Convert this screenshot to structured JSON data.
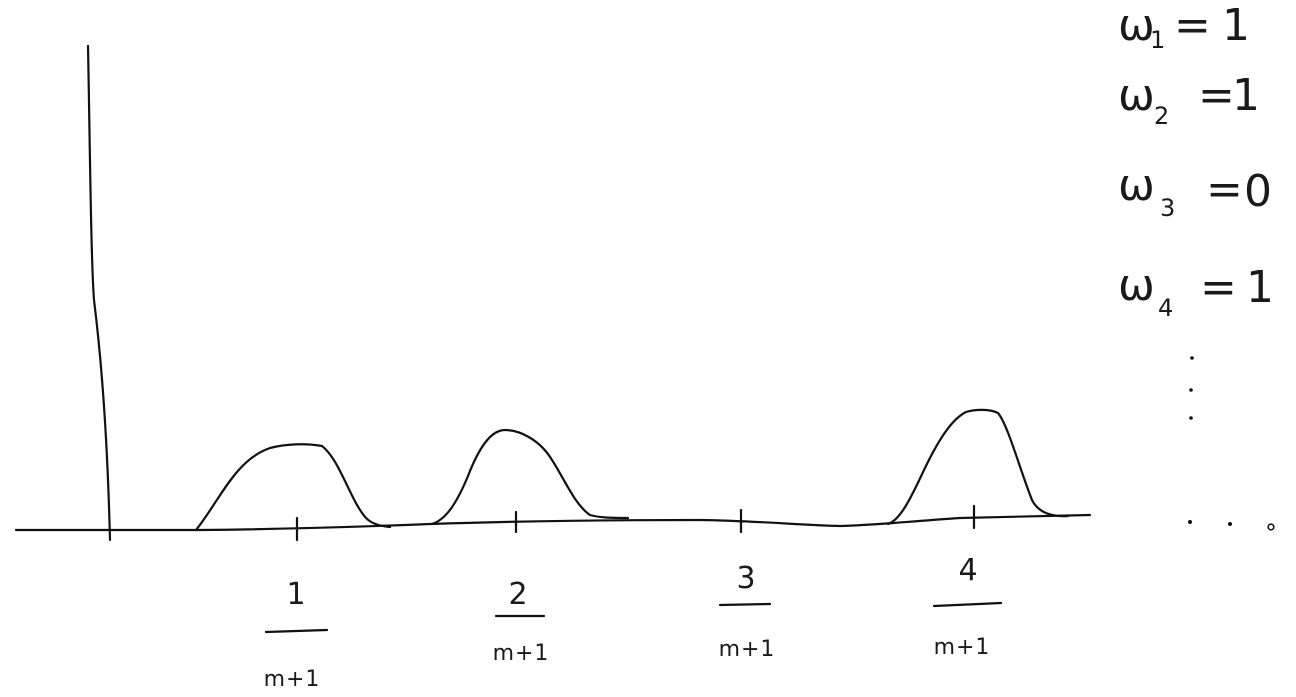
{
  "tick_labels": [
    {
      "numerator": "1",
      "denominator": "m+1"
    },
    {
      "numerator": "2",
      "denominator": "m+1"
    },
    {
      "numerator": "3",
      "denominator": "m+1"
    },
    {
      "numerator": "4",
      "denominator": "m+1"
    }
  ],
  "weights": [
    {
      "symbol": "ω",
      "index": "1",
      "eq": "=",
      "value": "1"
    },
    {
      "symbol": "ω",
      "index": "2",
      "eq": "=",
      "value": "1"
    },
    {
      "symbol": "ω",
      "index": "3",
      "eq": "=",
      "value": "0"
    },
    {
      "symbol": "ω",
      "index": "4",
      "eq": "=",
      "value": "1"
    }
  ],
  "bumps_present": [
    true,
    true,
    false,
    true
  ],
  "ink_color": "#111111"
}
